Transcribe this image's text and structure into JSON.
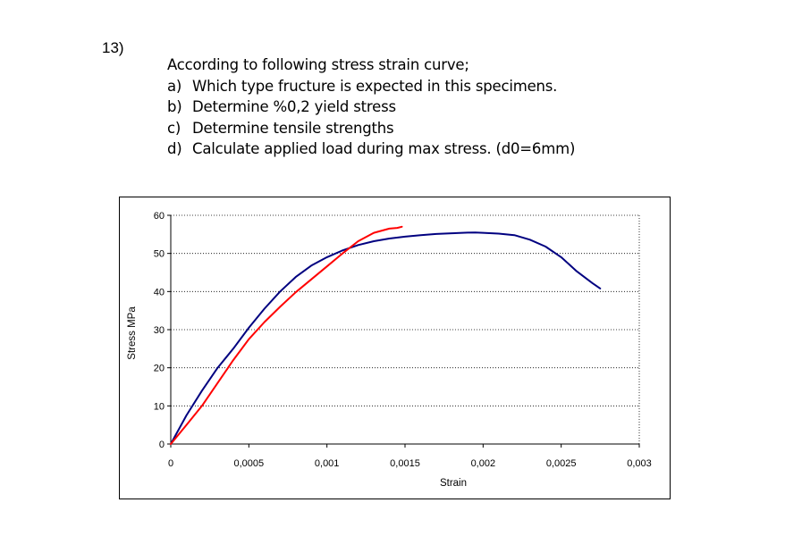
{
  "question": {
    "number": "13)",
    "intro": "According to following stress strain curve;",
    "items": [
      {
        "letter": "a)",
        "text": "Which type fructure is expected in this specimens."
      },
      {
        "letter": "b)",
        "text": "Determine %0,2 yield stress"
      },
      {
        "letter": "c)",
        "text": "Determine tensile strengths"
      },
      {
        "letter": "d)",
        "text": "Calculate applied load during max stress. (d0=6mm)"
      }
    ]
  },
  "chart_data": {
    "type": "line",
    "title": "",
    "xlabel": "Strain",
    "ylabel": "Stress MPa",
    "xlim": [
      0,
      0.003
    ],
    "ylim": [
      0,
      60
    ],
    "x_ticks": [
      0,
      0.0005,
      0.001,
      0.0015,
      0.002,
      0.0025,
      0.003
    ],
    "x_tick_labels": [
      "0",
      "0,0005",
      "0,001",
      "0,0015",
      "0,002",
      "0,0025",
      "0,003"
    ],
    "y_ticks": [
      0,
      10,
      20,
      30,
      40,
      50,
      60
    ],
    "y_tick_labels": [
      "0",
      "10",
      "20",
      "30",
      "40",
      "50",
      "60"
    ],
    "grid": "horizontal dotted",
    "legend": "none",
    "series": [
      {
        "color": "#000080",
        "x": [
          0,
          0.0001,
          0.0002,
          0.0003,
          0.0004,
          0.0005,
          0.0006,
          0.0007,
          0.0008,
          0.0009,
          0.001,
          0.0011,
          0.0012,
          0.0013,
          0.0014,
          0.0015,
          0.0016,
          0.0017,
          0.0018,
          0.0019,
          0.00195,
          0.002,
          0.0021,
          0.0022,
          0.0023,
          0.0024,
          0.0025,
          0.0026,
          0.0027,
          0.00275
        ],
        "y": [
          0,
          7.5,
          14,
          20,
          25,
          30.5,
          35.5,
          40,
          43.8,
          46.8,
          49,
          50.8,
          52.2,
          53.2,
          53.9,
          54.4,
          54.8,
          55.1,
          55.3,
          55.45,
          55.5,
          55.4,
          55.2,
          54.8,
          53.6,
          51.8,
          49,
          45.3,
          42.2,
          40.8
        ]
      },
      {
        "color": "#ff0000",
        "x": [
          0,
          0.0001,
          0.0002,
          0.0003,
          0.0004,
          0.0005,
          0.0006,
          0.0007,
          0.0008,
          0.0009,
          0.001,
          0.0011,
          0.0012,
          0.0013,
          0.0014,
          0.00145,
          0.00148
        ],
        "y": [
          0,
          5,
          10,
          16,
          22,
          27.5,
          32,
          36,
          39.8,
          43.2,
          46.6,
          50,
          53.2,
          55.4,
          56.5,
          56.7,
          57
        ]
      }
    ]
  }
}
